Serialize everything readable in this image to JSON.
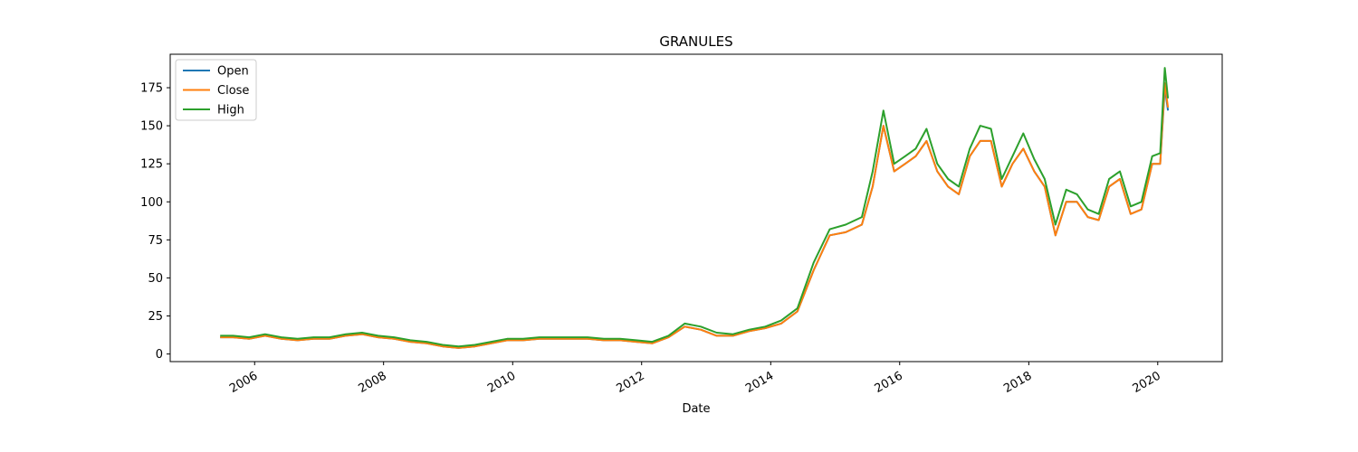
{
  "chart_data": {
    "type": "line",
    "title": "GRANULES",
    "xlabel": "Date",
    "ylabel": "",
    "xlim": [
      "2004-09-10",
      "2020-12-31"
    ],
    "ylim": [
      -5,
      197
    ],
    "xticks": [
      "2006",
      "2008",
      "2010",
      "2012",
      "2014",
      "2016",
      "2018",
      "2020"
    ],
    "yticks": [
      0,
      25,
      50,
      75,
      100,
      125,
      150,
      175
    ],
    "legend_position": "top-left",
    "grid": false,
    "x": [
      "2005-06-20",
      "2005-09-01",
      "2005-12-01",
      "2006-03-01",
      "2006-06-01",
      "2006-09-01",
      "2006-12-01",
      "2007-03-01",
      "2007-06-01",
      "2007-09-01",
      "2007-12-01",
      "2008-03-01",
      "2008-06-01",
      "2008-09-01",
      "2008-12-01",
      "2009-03-01",
      "2009-06-01",
      "2009-09-01",
      "2009-12-01",
      "2010-03-01",
      "2010-06-01",
      "2010-09-01",
      "2010-12-01",
      "2011-03-01",
      "2011-06-01",
      "2011-09-01",
      "2011-12-01",
      "2012-03-01",
      "2012-06-01",
      "2012-09-01",
      "2012-12-01",
      "2013-03-01",
      "2013-06-01",
      "2013-09-01",
      "2013-12-01",
      "2014-03-01",
      "2014-06-01",
      "2014-09-01",
      "2014-12-01",
      "2015-03-01",
      "2015-06-01",
      "2015-08-01",
      "2015-10-01",
      "2015-12-01",
      "2016-02-01",
      "2016-04-01",
      "2016-06-01",
      "2016-08-01",
      "2016-10-01",
      "2016-12-01",
      "2017-02-01",
      "2017-04-01",
      "2017-06-01",
      "2017-08-01",
      "2017-10-01",
      "2017-12-01",
      "2018-02-01",
      "2018-04-01",
      "2018-06-01",
      "2018-08-01",
      "2018-10-01",
      "2018-12-01",
      "2019-02-01",
      "2019-04-01",
      "2019-06-01",
      "2019-08-01",
      "2019-10-01",
      "2019-12-01",
      "2020-01-15",
      "2020-02-10",
      "2020-02-28"
    ],
    "series": [
      {
        "name": "Open",
        "color": "#1f77b4",
        "values": [
          11,
          11,
          10,
          12,
          10,
          9,
          10,
          10,
          12,
          13,
          11,
          10,
          8,
          7,
          5,
          4,
          5,
          7,
          9,
          9,
          10,
          10,
          10,
          10,
          9,
          9,
          8,
          7,
          11,
          18,
          16,
          12,
          12,
          15,
          17,
          20,
          28,
          55,
          78,
          80,
          85,
          110,
          150,
          120,
          125,
          130,
          140,
          120,
          110,
          105,
          130,
          140,
          140,
          110,
          125,
          135,
          120,
          110,
          78,
          100,
          100,
          90,
          88,
          110,
          115,
          92,
          95,
          125,
          125,
          175,
          160
        ]
      },
      {
        "name": "Close",
        "color": "#ff7f0e",
        "values": [
          11,
          11,
          10,
          12,
          10,
          9,
          10,
          10,
          12,
          13,
          11,
          10,
          8,
          7,
          5,
          4,
          5,
          7,
          9,
          9,
          10,
          10,
          10,
          10,
          9,
          9,
          8,
          7,
          11,
          18,
          16,
          12,
          12,
          15,
          17,
          20,
          28,
          55,
          78,
          80,
          85,
          110,
          150,
          120,
          125,
          130,
          140,
          120,
          110,
          105,
          130,
          140,
          140,
          110,
          125,
          135,
          120,
          110,
          78,
          100,
          100,
          90,
          88,
          110,
          115,
          92,
          95,
          125,
          125,
          178,
          162
        ]
      },
      {
        "name": "High",
        "color": "#2ca02c",
        "values": [
          12,
          12,
          11,
          13,
          11,
          10,
          11,
          11,
          13,
          14,
          12,
          11,
          9,
          8,
          6,
          5,
          6,
          8,
          10,
          10,
          11,
          11,
          11,
          11,
          10,
          10,
          9,
          8,
          12,
          20,
          18,
          14,
          13,
          16,
          18,
          22,
          30,
          60,
          82,
          85,
          90,
          120,
          160,
          125,
          130,
          135,
          148,
          125,
          115,
          110,
          135,
          150,
          148,
          115,
          130,
          145,
          128,
          115,
          85,
          108,
          105,
          95,
          92,
          115,
          120,
          97,
          100,
          130,
          132,
          188,
          168
        ]
      }
    ]
  }
}
